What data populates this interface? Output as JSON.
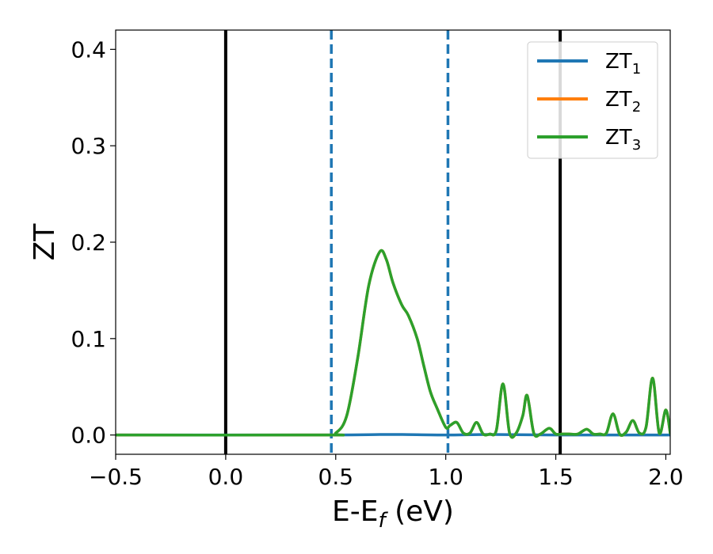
{
  "chart_data": {
    "type": "line",
    "xlabel": {
      "main": "E-E",
      "sub": "f",
      "tail": " (eV)"
    },
    "ylabel": "ZT",
    "xlim": [
      -0.5,
      2.02
    ],
    "ylim": [
      -0.02,
      0.42
    ],
    "xticks": [
      -0.5,
      0.0,
      0.5,
      1.0,
      1.5,
      2.0
    ],
    "xtick_labels": [
      "−0.5",
      "0.0",
      "0.5",
      "1.0",
      "1.5",
      "2.0"
    ],
    "yticks": [
      0.0,
      0.1,
      0.2,
      0.3,
      0.4
    ],
    "ytick_labels": [
      "0.0",
      "0.1",
      "0.2",
      "0.3",
      "0.4"
    ],
    "grid": false,
    "legend_position": "top-right",
    "vlines": [
      {
        "x": 0.0,
        "style": "solid",
        "color": "#000000"
      },
      {
        "x": 1.52,
        "style": "solid",
        "color": "#000000"
      },
      {
        "x": 0.48,
        "style": "dashed",
        "color": "#1f77b4"
      },
      {
        "x": 1.01,
        "style": "dashed",
        "color": "#1f77b4"
      }
    ],
    "series": [
      {
        "name": "ZT",
        "sub": "1",
        "color": "#1f77b4",
        "x": [
          -0.5,
          0.0,
          0.5,
          0.7,
          0.8,
          1.0,
          1.2,
          1.5,
          2.02
        ],
        "y": [
          0.0,
          0.0,
          0.0,
          0.0005,
          0.0005,
          0.0,
          0.0005,
          0.0,
          0.0
        ]
      },
      {
        "name": "ZT",
        "sub": "2",
        "color": "#ff7f0e",
        "x": [
          -0.5,
          0.45,
          0.5,
          0.55,
          0.6,
          0.65,
          0.7,
          0.73,
          0.76,
          0.8,
          0.83,
          0.87,
          0.9,
          0.93,
          0.96,
          1.0,
          1.02,
          1.05,
          1.08,
          1.11,
          1.14,
          1.17,
          1.2,
          1.23,
          1.26,
          1.29,
          1.32,
          1.35,
          1.37,
          1.4,
          1.43,
          1.47,
          1.5,
          1.53,
          1.56,
          1.6,
          1.64,
          1.67,
          1.7,
          1.73,
          1.76,
          1.79,
          1.82,
          1.85,
          1.88,
          1.91,
          1.94,
          1.97,
          2.0,
          2.02
        ],
        "y": [
          0.0,
          0.0,
          0.002,
          0.02,
          0.08,
          0.155,
          0.19,
          0.182,
          0.158,
          0.135,
          0.124,
          0.1,
          0.072,
          0.045,
          0.028,
          0.008,
          0.01,
          0.013,
          0.002,
          0.002,
          0.013,
          0.001,
          0.001,
          0.005,
          0.053,
          0.002,
          0.002,
          0.02,
          0.041,
          0.002,
          0.001,
          0.007,
          0.001,
          0.001,
          0.001,
          0.001,
          0.006,
          0.001,
          0.001,
          0.002,
          0.022,
          0.001,
          0.003,
          0.015,
          0.002,
          0.008,
          0.059,
          0.002,
          0.026,
          0.002
        ]
      },
      {
        "name": "ZT",
        "sub": "3",
        "color": "#2ca02c",
        "x": [
          -0.5,
          0.45,
          0.5,
          0.55,
          0.6,
          0.65,
          0.7,
          0.73,
          0.76,
          0.8,
          0.83,
          0.87,
          0.9,
          0.93,
          0.96,
          1.0,
          1.02,
          1.05,
          1.08,
          1.11,
          1.14,
          1.17,
          1.2,
          1.23,
          1.26,
          1.29,
          1.32,
          1.35,
          1.37,
          1.4,
          1.43,
          1.47,
          1.5,
          1.53,
          1.56,
          1.6,
          1.64,
          1.67,
          1.7,
          1.73,
          1.76,
          1.79,
          1.82,
          1.85,
          1.88,
          1.91,
          1.94,
          1.97,
          2.0,
          2.02
        ],
        "y": [
          0.0,
          0.0,
          0.002,
          0.02,
          0.08,
          0.155,
          0.19,
          0.182,
          0.158,
          0.135,
          0.124,
          0.1,
          0.072,
          0.045,
          0.028,
          0.008,
          0.01,
          0.013,
          0.002,
          0.002,
          0.013,
          0.001,
          0.001,
          0.005,
          0.053,
          0.002,
          0.002,
          0.02,
          0.041,
          0.002,
          0.001,
          0.007,
          0.001,
          0.001,
          0.001,
          0.001,
          0.006,
          0.001,
          0.001,
          0.002,
          0.022,
          0.001,
          0.003,
          0.015,
          0.002,
          0.008,
          0.059,
          0.002,
          0.026,
          0.002
        ]
      }
    ]
  }
}
